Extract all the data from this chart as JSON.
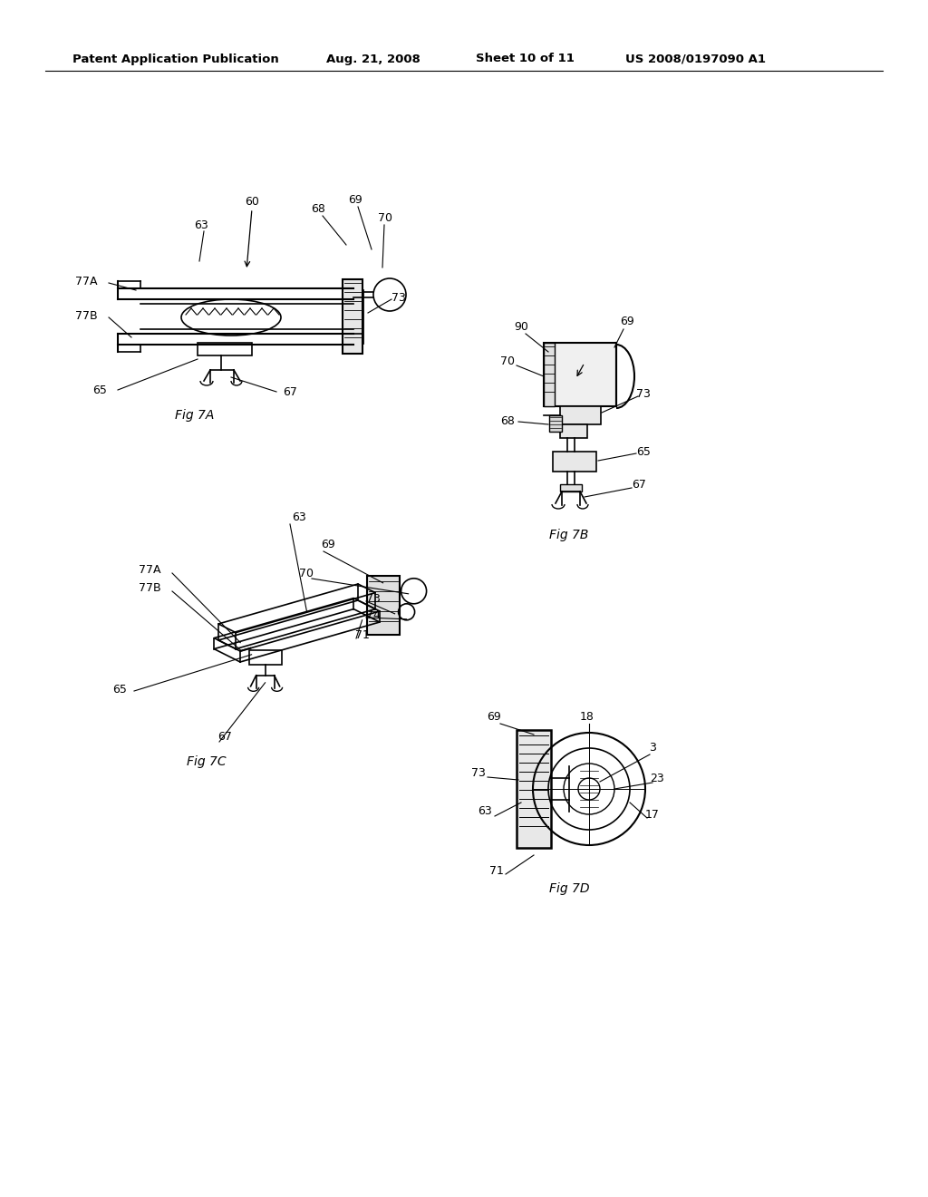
{
  "bg_color": "#ffffff",
  "header_text1": "Patent Application Publication",
  "header_text2": "Aug. 21, 2008",
  "header_text3": "Sheet 10 of 11",
  "header_text4": "US 2008/0197090 A1",
  "page_width": 10.24,
  "page_height": 13.2,
  "dpi": 100
}
